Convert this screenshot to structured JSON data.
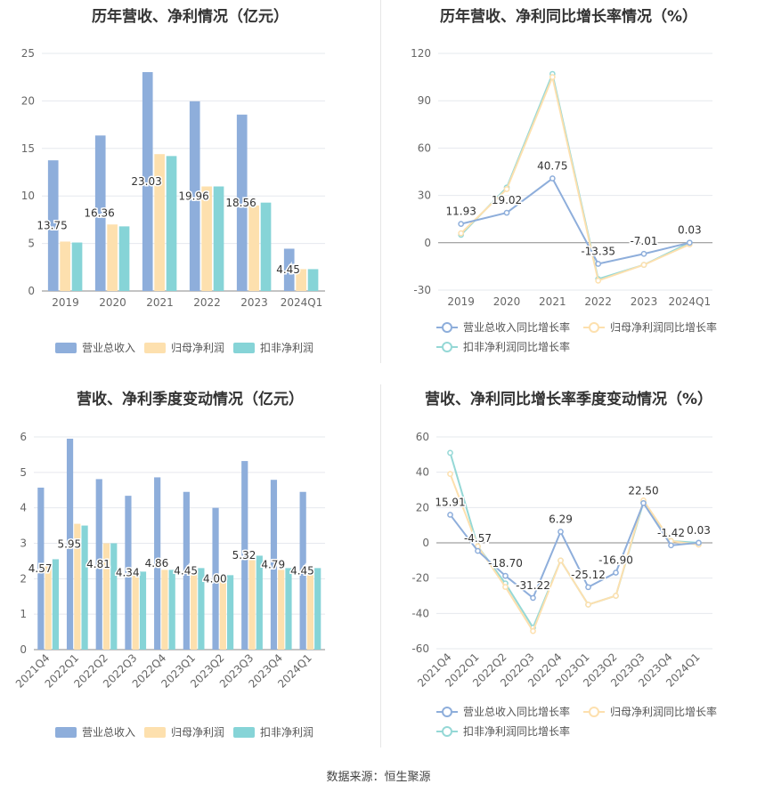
{
  "source": "数据来源：恒生聚源",
  "colors": {
    "revenue": "#8eaedb",
    "netprofit": "#fde0ae",
    "deducted": "#86d4d7",
    "revenue_line": "#8eaedb",
    "netprofit_line": "#fde0ae",
    "deducted_line": "#95d8d6",
    "grid": "#e6e8ee",
    "axis": "#999999",
    "text": "#666666"
  },
  "chart_data": [
    {
      "id": "annual-bar",
      "type": "bar",
      "title": "历年营收、净利情况（亿元）",
      "categories": [
        "2019",
        "2020",
        "2021",
        "2022",
        "2023",
        "2024Q1"
      ],
      "series": [
        {
          "name": "营业总收入",
          "values": [
            13.75,
            16.36,
            23.03,
            19.96,
            18.56,
            4.45
          ]
        },
        {
          "name": "归母净利润",
          "values": [
            5.2,
            7.0,
            14.4,
            11.0,
            9.0,
            2.3
          ]
        },
        {
          "name": "扣非净利润",
          "values": [
            5.1,
            6.8,
            14.2,
            11.0,
            9.3,
            2.3
          ]
        }
      ],
      "data_labels": [
        "13.75",
        "16.36",
        "23.03",
        "19.96",
        "18.56",
        "4.45"
      ],
      "yticks": [
        "0",
        "5",
        "10",
        "15",
        "20",
        "25"
      ],
      "ylim": [
        0,
        25
      ],
      "legend": "bottom"
    },
    {
      "id": "annual-line",
      "type": "line",
      "title": "历年营收、净利同比增长率情况（%）",
      "categories": [
        "2019",
        "2020",
        "2021",
        "2022",
        "2023",
        "2024Q1"
      ],
      "series": [
        {
          "name": "营业总收入同比增长率",
          "values": [
            11.93,
            19.02,
            40.75,
            -13.35,
            -7.01,
            0.03
          ]
        },
        {
          "name": "归母净利润同比增长率",
          "values": [
            6,
            34,
            105,
            -24,
            -14,
            -1
          ]
        },
        {
          "name": "扣非净利润同比增长率",
          "values": [
            5,
            35,
            107,
            -23,
            -14,
            0
          ]
        }
      ],
      "data_labels": [
        "11.93",
        "19.02",
        "40.75",
        "-13.35",
        "-7.01",
        "0.03"
      ],
      "yticks": [
        "-30",
        "0",
        "30",
        "60",
        "90",
        "120"
      ],
      "ylim": [
        -30,
        120
      ],
      "legend": "bottom"
    },
    {
      "id": "quarter-bar",
      "type": "bar",
      "title": "营收、净利季度变动情况（亿元）",
      "categories": [
        "2021Q4",
        "2022Q1",
        "2022Q2",
        "2022Q3",
        "2022Q4",
        "2023Q1",
        "2023Q2",
        "2023Q3",
        "2023Q4",
        "2024Q1"
      ],
      "series": [
        {
          "name": "营业总收入",
          "values": [
            4.57,
            5.95,
            4.81,
            4.34,
            4.86,
            4.45,
            4.0,
            5.32,
            4.79,
            4.45
          ]
        },
        {
          "name": "归母净利润",
          "values": [
            2.4,
            3.55,
            3.0,
            2.1,
            2.25,
            2.15,
            2.1,
            2.6,
            2.25,
            2.2
          ]
        },
        {
          "name": "扣非净利润",
          "values": [
            2.55,
            3.5,
            3.0,
            2.2,
            2.25,
            2.3,
            2.1,
            2.65,
            2.3,
            2.3
          ]
        }
      ],
      "data_labels": [
        "4.57",
        "5.95",
        "4.81",
        "4.34",
        "4.86",
        "4.45",
        "4.00",
        "5.32",
        "4.79",
        "4.45"
      ],
      "yticks": [
        "0",
        "1",
        "2",
        "3",
        "4",
        "5",
        "6"
      ],
      "ylim": [
        0,
        6
      ],
      "legend": "bottom"
    },
    {
      "id": "quarter-line",
      "type": "line",
      "title": "营收、净利同比增长率季度变动情况（%）",
      "categories": [
        "2021Q4",
        "2022Q1",
        "2022Q2",
        "2022Q3",
        "2022Q4",
        "2023Q1",
        "2023Q2",
        "2023Q3",
        "2023Q4",
        "2024Q1"
      ],
      "series": [
        {
          "name": "营业总收入同比增长率",
          "values": [
            15.91,
            -4.57,
            -18.7,
            -31.22,
            6.29,
            -25.12,
            -16.9,
            22.5,
            -1.42,
            0.03
          ]
        },
        {
          "name": "归母净利润同比增长率",
          "values": [
            39,
            -2,
            -25,
            -50,
            -10,
            -35,
            -30,
            24,
            1,
            -1
          ]
        },
        {
          "name": "扣非净利润同比增长率",
          "values": [
            51,
            -2,
            -23,
            -48,
            -10,
            -35,
            -30,
            23,
            1,
            0
          ]
        }
      ],
      "data_labels": [
        "15.91",
        "-4.57",
        "-18.70",
        "-31.22",
        "6.29",
        "-25.12",
        "-16.90",
        "22.50",
        "-1.42",
        "0.03"
      ],
      "yticks": [
        "-60",
        "-40",
        "-20",
        "0",
        "20",
        "40",
        "60"
      ],
      "ylim": [
        -60,
        60
      ],
      "legend": "bottom"
    }
  ]
}
